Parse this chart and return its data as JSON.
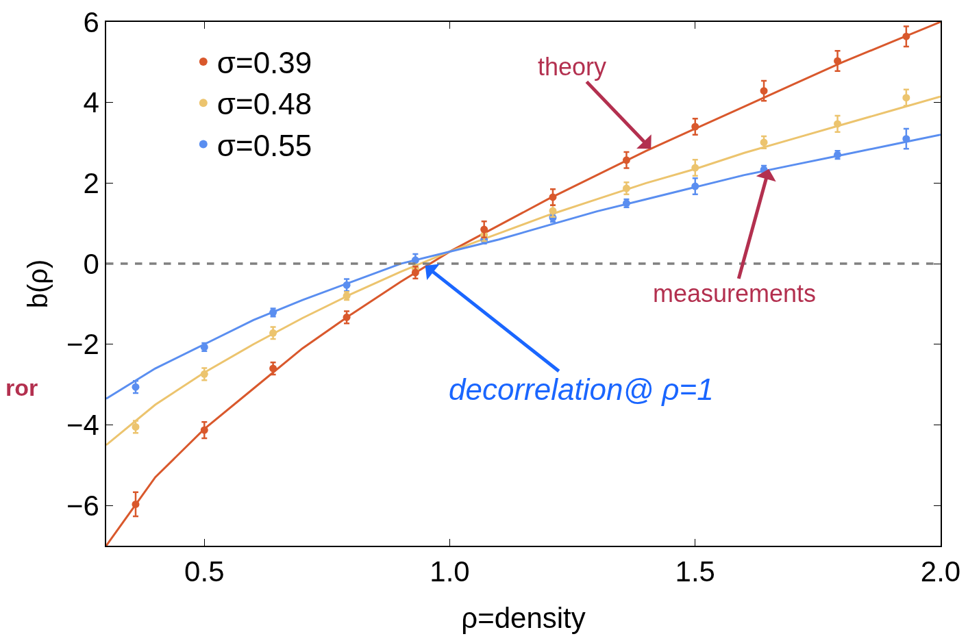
{
  "chart_data": {
    "type": "scatter",
    "xlabel": "ρ=density",
    "ylabel": "b(ρ)",
    "xlim": [
      0.3,
      2.0
    ],
    "xticks": [
      {
        "value": 0.5,
        "label": "0.5"
      },
      {
        "value": 1.0,
        "label": "1.0"
      },
      {
        "value": 1.5,
        "label": "1.5"
      },
      {
        "value": 2.0,
        "label": "2.0"
      }
    ],
    "ylim": [
      -7,
      6
    ],
    "yticks": [
      -6,
      -4,
      -2,
      0,
      2,
      4,
      6
    ],
    "grid": false,
    "legend": "top left",
    "marker": "circle",
    "x": [
      0.36,
      0.5,
      0.64,
      0.79,
      0.93,
      1.07,
      1.21,
      1.36,
      1.5,
      1.64,
      1.79,
      1.93
    ],
    "series": [
      {
        "name": "σ=0.39",
        "color": "#d9582c",
        "values": [
          -5.97,
          -4.13,
          -2.6,
          -1.33,
          -0.22,
          0.85,
          1.65,
          2.57,
          3.4,
          4.29,
          5.03,
          5.64
        ],
        "errors": [
          0.3,
          0.2,
          0.15,
          0.15,
          0.15,
          0.2,
          0.2,
          0.2,
          0.2,
          0.25,
          0.25,
          0.25
        ]
      },
      {
        "name": "σ=0.48",
        "color": "#ecc46e",
        "values": [
          -4.05,
          -2.74,
          -1.72,
          -0.8,
          -0.12,
          0.71,
          1.31,
          1.87,
          2.38,
          3.01,
          3.47,
          4.12
        ],
        "errors": [
          0.15,
          0.15,
          0.15,
          0.1,
          0.1,
          0.15,
          0.15,
          0.15,
          0.2,
          0.15,
          0.2,
          0.2
        ]
      },
      {
        "name": "σ=0.55",
        "color": "#5a8ef0",
        "values": [
          -3.06,
          -2.07,
          -1.21,
          -0.53,
          0.09,
          0.6,
          1.14,
          1.5,
          1.92,
          2.33,
          2.7,
          3.1
        ],
        "errors": [
          0.15,
          0.1,
          0.1,
          0.15,
          0.15,
          0.1,
          0.1,
          0.1,
          0.2,
          0.1,
          0.1,
          0.25
        ]
      },
      {
        "type": "line",
        "marker": "none",
        "color": "#d9582c",
        "x": [
          0.3,
          0.4,
          0.5,
          0.6,
          0.7,
          0.8,
          0.9,
          1.0,
          1.1,
          1.2,
          1.3,
          1.4,
          1.5,
          1.6,
          1.7,
          1.8,
          1.9,
          2.0
        ],
        "values": [
          -7.0,
          -5.3,
          -4.1,
          -3.1,
          -2.1,
          -1.25,
          -0.45,
          0.3,
          0.95,
          1.6,
          2.2,
          2.8,
          3.35,
          3.9,
          4.45,
          5.0,
          5.5,
          6.0
        ]
      },
      {
        "type": "line",
        "marker": "none",
        "color": "#ecc46e",
        "x": [
          0.3,
          0.4,
          0.5,
          0.6,
          0.7,
          0.8,
          0.9,
          1.0,
          1.1,
          1.2,
          1.3,
          1.4,
          1.5,
          1.6,
          1.7,
          1.8,
          1.9,
          2.0
        ],
        "values": [
          -4.5,
          -3.5,
          -2.7,
          -2.0,
          -1.35,
          -0.75,
          -0.2,
          0.3,
          0.75,
          1.2,
          1.6,
          2.0,
          2.35,
          2.75,
          3.1,
          3.45,
          3.8,
          4.15
        ]
      },
      {
        "type": "line",
        "marker": "none",
        "color": "#5a8ef0",
        "x": [
          0.3,
          0.4,
          0.5,
          0.6,
          0.7,
          0.8,
          0.9,
          1.0,
          1.1,
          1.2,
          1.3,
          1.4,
          1.5,
          1.6,
          1.7,
          1.8,
          1.9,
          2.0
        ],
        "values": [
          -3.35,
          -2.6,
          -2.0,
          -1.4,
          -0.9,
          -0.45,
          0.0,
          0.3,
          0.6,
          0.95,
          1.3,
          1.6,
          1.9,
          2.2,
          2.45,
          2.7,
          2.95,
          3.2
        ]
      }
    ],
    "ref_lines": [
      {
        "axis": "y",
        "value": 0,
        "color": "#808080",
        "line_style": "dashed"
      }
    ],
    "annotations": [
      {
        "text": "theory",
        "x": 1.41,
        "y": 2.85
      },
      {
        "text": "measurements",
        "x": 1.65,
        "y": 2.35
      },
      {
        "text": "decorrelation@ ρ=1",
        "x": 0.95,
        "y": -0.05
      },
      "ror"
    ]
  }
}
